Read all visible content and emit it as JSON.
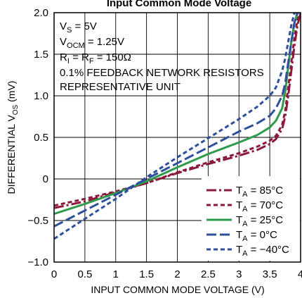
{
  "chart_data": {
    "type": "line",
    "title": "Input Common Mode Voltage",
    "xlabel": "INPUT COMMON MODE VOLTAGE (V)",
    "ylabel": {
      "pre": "DIFFERENTIAL V",
      "sub": "OS",
      "post": " (mV)"
    },
    "xlim": [
      0,
      4
    ],
    "ylim": [
      -1.0,
      2.0
    ],
    "x_ticks": [
      "0",
      "0.5",
      "1",
      "1.5",
      "2",
      "2.5",
      "3",
      "3.5",
      "4"
    ],
    "y_ticks": [
      "-1.0",
      "-0.5",
      "0",
      "0.5",
      "1.0",
      "1.5",
      "2.0"
    ],
    "y_tick_labels": [
      "−1.0",
      "−0.5",
      "0",
      "0.5",
      "1.0",
      "1.5",
      "2.0"
    ],
    "grid": true,
    "annotations": [
      {
        "pre": "V",
        "sub": "S",
        "post": " = 5V"
      },
      {
        "pre": "V",
        "sub": "OCM",
        "post": " = 1.25V"
      },
      {
        "pre": "R",
        "sub": "I",
        "mid": " = R",
        "sub2": "F",
        "post": " = 150Ω"
      },
      {
        "pre": "0.1% FEEDBACK NETWORK RESISTORS"
      },
      {
        "pre": "REPRESENTATIVE UNIT"
      }
    ],
    "legend_position": "bottom-right",
    "series": [
      {
        "name": "85°C",
        "color": "#8b1a3a",
        "dash": "longdashdot",
        "x": [
          0,
          0.5,
          1,
          1.5,
          2,
          2.5,
          3,
          3.3,
          3.5,
          3.6,
          3.7,
          3.75,
          3.8,
          3.85,
          3.9,
          3.95,
          4.0
        ],
        "y": [
          -0.35,
          -0.27,
          -0.16,
          -0.05,
          0.07,
          0.18,
          0.28,
          0.35,
          0.42,
          0.48,
          0.6,
          0.75,
          1.0,
          1.3,
          1.6,
          1.85,
          2.0
        ]
      },
      {
        "name": "70°C",
        "color": "#8b1a3a",
        "dash": "shortdash",
        "x": [
          0,
          0.5,
          1,
          1.5,
          2,
          2.5,
          3,
          3.3,
          3.5,
          3.6,
          3.7,
          3.75,
          3.8,
          3.85,
          3.9,
          3.95,
          4.0
        ],
        "y": [
          -0.32,
          -0.24,
          -0.15,
          -0.05,
          0.08,
          0.2,
          0.31,
          0.39,
          0.46,
          0.52,
          0.65,
          0.82,
          1.1,
          1.4,
          1.7,
          1.92,
          2.0
        ]
      },
      {
        "name": "25°C",
        "color": "#2f9a4a",
        "dash": "solid",
        "x": [
          0,
          0.5,
          1,
          1.5,
          2,
          2.5,
          3,
          3.3,
          3.5,
          3.6,
          3.7,
          3.75,
          3.8,
          3.85,
          3.9,
          3.95,
          4.0
        ],
        "y": [
          -0.42,
          -0.3,
          -0.17,
          -0.03,
          0.14,
          0.3,
          0.44,
          0.53,
          0.62,
          0.7,
          0.85,
          1.05,
          1.35,
          1.65,
          1.88,
          2.0,
          2.0
        ]
      },
      {
        "name": "0°C",
        "color": "#2e4f9c",
        "dash": "longdash",
        "x": [
          0,
          0.5,
          1,
          1.5,
          2,
          2.5,
          3,
          3.3,
          3.5,
          3.6,
          3.7,
          3.75,
          3.8,
          3.85,
          3.9,
          3.95,
          4.0
        ],
        "y": [
          -0.57,
          -0.38,
          -0.19,
          0.0,
          0.19,
          0.38,
          0.57,
          0.67,
          0.76,
          0.85,
          1.0,
          1.15,
          1.4,
          1.65,
          1.88,
          2.0,
          2.0
        ]
      },
      {
        "name": "−40°C",
        "color": "#2e4f9c",
        "dash": "shortdash",
        "x": [
          0,
          0.5,
          1,
          1.5,
          2,
          2.5,
          3,
          3.3,
          3.5,
          3.6,
          3.7,
          3.75,
          3.8,
          3.85,
          3.9,
          3.95,
          4.0
        ],
        "y": [
          -0.72,
          -0.48,
          -0.24,
          0.02,
          0.26,
          0.49,
          0.72,
          0.87,
          1.0,
          1.1,
          1.3,
          1.45,
          1.65,
          1.85,
          2.0,
          2.0,
          2.0
        ]
      }
    ],
    "legend_label_prefix": "T",
    "legend_label_sub": "A",
    "legend_label_eq": " = "
  }
}
